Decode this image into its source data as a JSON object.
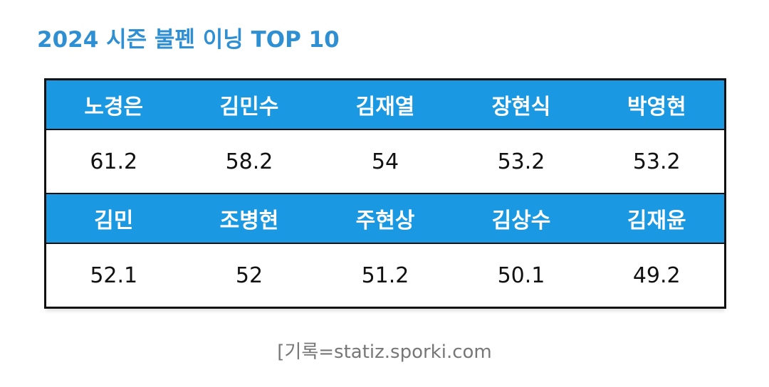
{
  "title": "2024 시즌 불펜 이닝 TOP 10",
  "table": {
    "rows": [
      [
        "노경은",
        "김민수",
        "김재열",
        "장현식",
        "박영현"
      ],
      [
        61.2,
        58.2,
        54,
        53.2,
        53.2
      ],
      [
        "김민",
        "조병현",
        "주현상",
        "김상수",
        "김재윤"
      ],
      [
        52.1,
        52,
        51.2,
        50.1,
        49.2
      ]
    ]
  },
  "source": "[기록=statiz.sporki.com"
}
